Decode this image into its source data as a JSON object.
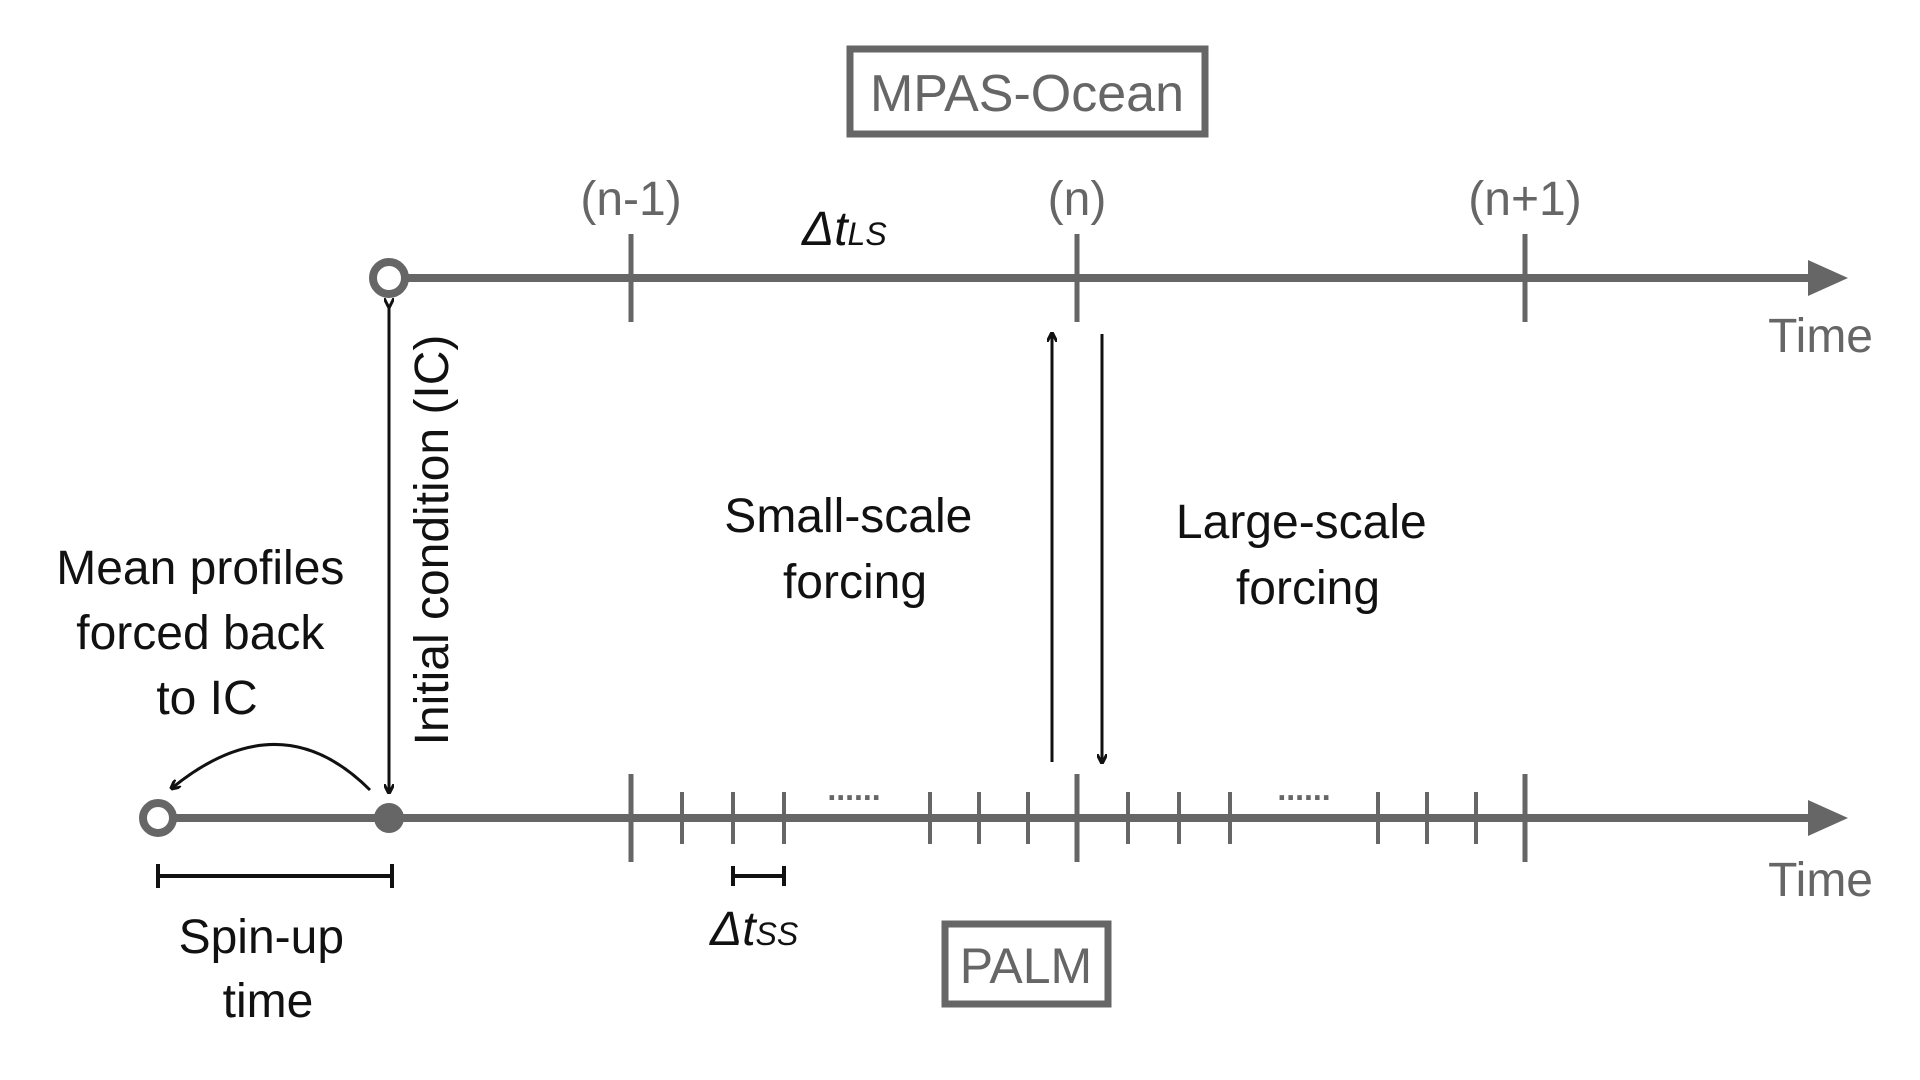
{
  "colors": {
    "axis": "#666666",
    "text_gray": "#666666",
    "text_black": "#111111",
    "background": "#ffffff"
  },
  "top_model": {
    "label": "MPAS-Ocean",
    "steps": [
      "(n-1)",
      "(n)",
      "(n+1)"
    ],
    "dt_label": "Δt",
    "dt_subscript": "LS",
    "axis_label": "Time"
  },
  "bottom_model": {
    "label": "PALM",
    "dt_label": "Δt",
    "dt_subscript": "SS",
    "axis_label": "Time",
    "ellipsis": "......"
  },
  "annotations": {
    "initial_condition": "Initial condition (IC)",
    "small_scale": [
      "Small-scale",
      "forcing"
    ],
    "large_scale": [
      "Large-scale",
      "forcing"
    ],
    "mean_profiles": [
      "Mean profiles",
      "forced back",
      "to IC"
    ],
    "spin_up": [
      "Spin-up",
      "time"
    ]
  }
}
